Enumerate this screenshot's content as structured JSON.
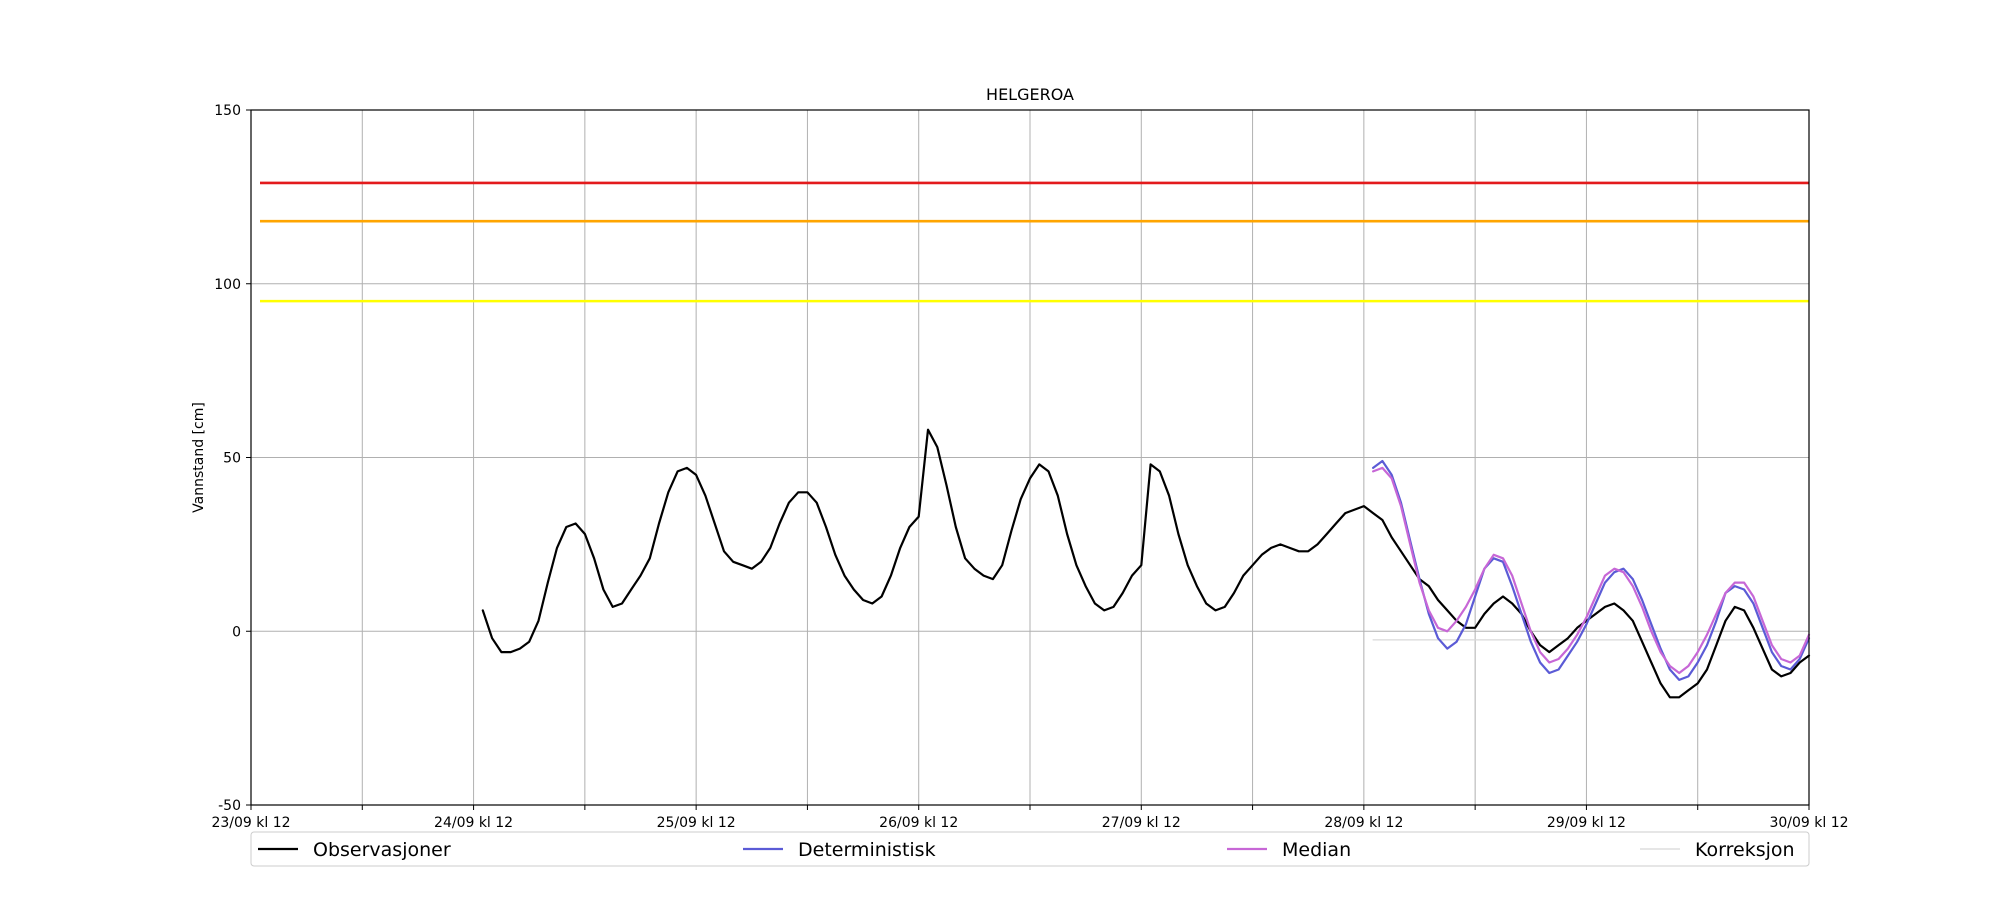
{
  "chart_data": {
    "type": "line",
    "title": "HELGEROA",
    "xlabel": "",
    "ylabel": "Vannstand [cm]",
    "xlim": [
      "23/09 12:00",
      "30/09 12:00"
    ],
    "ylim": [
      -50,
      150
    ],
    "y_ticks": [
      -50,
      0,
      50,
      100,
      150
    ],
    "x_tick_labels": [
      "23/09 kl 12",
      "24/09 kl 12",
      "25/09 kl 12",
      "26/09 kl 12",
      "27/09 kl 12",
      "28/09 kl 12",
      "29/09 kl 12",
      "30/09 kl 12"
    ],
    "grid": true,
    "legend_position": "bottom",
    "thresholds": [
      {
        "value": 129,
        "color": "#e31a1c"
      },
      {
        "value": 118,
        "color": "#ffa500"
      },
      {
        "value": 95,
        "color": "#ffff00"
      }
    ],
    "series": [
      {
        "name": "Observasjoner",
        "color": "#000000",
        "x": [
          "24/09 13:00",
          "24/09 14:00",
          "24/09 15:00",
          "24/09 16:00",
          "24/09 17:00",
          "24/09 18:00",
          "24/09 19:00",
          "24/09 20:00",
          "24/09 21:00",
          "24/09 22:00",
          "24/09 23:00",
          "25/09 00:00",
          "25/09 01:00",
          "25/09 02:00",
          "25/09 03:00",
          "25/09 04:00",
          "25/09 05:00",
          "25/09 06:00",
          "25/09 07:00",
          "25/09 08:00",
          "25/09 09:00",
          "25/09 10:00",
          "25/09 11:00",
          "25/09 12:00",
          "25/09 13:00",
          "25/09 14:00",
          "25/09 15:00",
          "25/09 16:00",
          "25/09 17:00",
          "25/09 18:00",
          "25/09 19:00",
          "25/09 20:00",
          "25/09 21:00",
          "25/09 22:00",
          "25/09 23:00",
          "26/09 00:00",
          "26/09 01:00",
          "26/09 02:00",
          "26/09 03:00",
          "26/09 04:00",
          "26/09 05:00",
          "26/09 06:00",
          "26/09 07:00",
          "26/09 08:00",
          "26/09 09:00",
          "26/09 10:00",
          "26/09 11:00",
          "26/09 12:00",
          "26/09 13:00",
          "26/09 14:00",
          "26/09 15:00",
          "26/09 16:00",
          "26/09 17:00",
          "26/09 18:00",
          "26/09 19:00",
          "26/09 20:00",
          "26/09 21:00",
          "26/09 22:00",
          "26/09 23:00",
          "27/09 00:00",
          "27/09 01:00",
          "27/09 02:00",
          "27/09 03:00",
          "27/09 04:00",
          "27/09 05:00",
          "27/09 06:00",
          "27/09 07:00",
          "27/09 08:00",
          "27/09 09:00",
          "27/09 10:00",
          "27/09 11:00",
          "27/09 12:00",
          "27/09 13:00",
          "27/09 14:00",
          "27/09 15:00",
          "27/09 16:00",
          "27/09 17:00",
          "27/09 18:00",
          "27/09 19:00",
          "27/09 20:00",
          "27/09 21:00",
          "27/09 22:00",
          "27/09 23:00",
          "28/09 00:00",
          "28/09 01:00",
          "28/09 02:00",
          "28/09 03:00",
          "28/09 04:00",
          "28/09 05:00",
          "28/09 06:00",
          "28/09 07:00",
          "28/09 08:00",
          "28/09 09:00",
          "28/09 10:00",
          "28/09 11:00",
          "28/09 12:00",
          "28/09 13:00",
          "28/09 14:00",
          "28/09 15:00",
          "28/09 16:00",
          "28/09 17:00",
          "28/09 18:00",
          "28/09 19:00",
          "28/09 20:00",
          "28/09 21:00",
          "28/09 22:00",
          "28/09 23:00",
          "29/09 00:00",
          "29/09 01:00",
          "29/09 02:00",
          "29/09 03:00",
          "29/09 04:00",
          "29/09 05:00",
          "29/09 06:00",
          "29/09 07:00",
          "29/09 08:00",
          "29/09 09:00",
          "29/09 10:00",
          "29/09 11:00",
          "29/09 12:00",
          "29/09 13:00",
          "29/09 14:00",
          "29/09 15:00",
          "29/09 16:00",
          "29/09 17:00",
          "29/09 18:00",
          "29/09 19:00",
          "29/09 20:00",
          "29/09 21:00",
          "29/09 22:00",
          "29/09 23:00",
          "30/09 00:00",
          "30/09 01:00",
          "30/09 02:00",
          "30/09 03:00",
          "30/09 04:00",
          "30/09 05:00",
          "30/09 06:00",
          "30/09 07:00",
          "30/09 08:00",
          "30/09 09:00",
          "30/09 10:00",
          "30/09 11:00",
          "30/09 12:00"
        ],
        "values": [
          6,
          -2,
          -6,
          -6,
          -5,
          -3,
          3,
          14,
          24,
          30,
          31,
          28,
          21,
          12,
          7,
          8,
          12,
          16,
          21,
          31,
          40,
          46,
          47,
          45,
          39,
          31,
          23,
          20,
          19,
          18,
          20,
          24,
          31,
          37,
          40,
          40,
          37,
          30,
          22,
          16,
          12,
          9,
          8,
          10,
          16,
          24,
          30,
          33,
          58,
          53,
          42,
          30,
          21,
          18,
          16,
          15,
          19,
          29,
          38,
          44,
          48,
          46,
          39,
          28,
          19,
          13,
          8,
          6,
          7,
          11,
          16,
          19,
          48,
          46,
          39,
          28,
          19,
          13,
          8,
          6,
          7,
          11,
          16,
          19,
          22,
          24,
          25,
          24,
          23,
          23,
          25,
          28,
          31,
          34,
          35,
          36,
          34,
          32,
          27,
          23,
          19,
          15,
          13,
          9,
          6,
          3,
          1,
          1,
          5,
          8,
          10,
          8,
          5,
          0,
          -4,
          -6,
          -4,
          -2,
          1,
          3,
          5,
          7,
          8,
          6,
          3,
          -3,
          -9,
          -15,
          -19,
          -19,
          -17,
          -15,
          -11,
          -4,
          3,
          7,
          6,
          1,
          -5,
          -11,
          -13,
          -12,
          -9,
          -7
        ]
      },
      {
        "name": "Deterministisk",
        "color": "#5b5bd6",
        "x": [
          "28/09 13:00",
          "28/09 14:00",
          "28/09 15:00",
          "28/09 16:00",
          "28/09 17:00",
          "28/09 18:00",
          "28/09 19:00",
          "28/09 20:00",
          "28/09 21:00",
          "28/09 22:00",
          "28/09 23:00",
          "29/09 00:00",
          "29/09 01:00",
          "29/09 02:00",
          "29/09 03:00",
          "29/09 04:00",
          "29/09 05:00",
          "29/09 06:00",
          "29/09 07:00",
          "29/09 08:00",
          "29/09 09:00",
          "29/09 10:00",
          "29/09 11:00",
          "29/09 12:00",
          "29/09 13:00",
          "29/09 14:00",
          "29/09 15:00",
          "29/09 16:00",
          "29/09 17:00",
          "29/09 18:00",
          "29/09 19:00",
          "29/09 20:00",
          "29/09 21:00",
          "29/09 22:00",
          "29/09 23:00",
          "30/09 00:00",
          "30/09 01:00",
          "30/09 02:00",
          "30/09 03:00",
          "30/09 04:00",
          "30/09 05:00",
          "30/09 06:00",
          "30/09 07:00",
          "30/09 08:00",
          "30/09 09:00",
          "30/09 10:00",
          "30/09 11:00",
          "30/09 12:00"
        ],
        "values": [
          47,
          49,
          45,
          37,
          26,
          15,
          5,
          -2,
          -5,
          -3,
          2,
          10,
          18,
          21,
          20,
          13,
          5,
          -3,
          -9,
          -12,
          -11,
          -7,
          -3,
          2,
          8,
          14,
          17,
          18,
          15,
          9,
          2,
          -5,
          -11,
          -14,
          -13,
          -9,
          -4,
          3,
          11,
          13,
          12,
          8,
          1,
          -6,
          -10,
          -11,
          -8,
          -2
        ]
      },
      {
        "name": "Median",
        "color": "#c767d6",
        "x": [
          "28/09 13:00",
          "28/09 14:00",
          "28/09 15:00",
          "28/09 16:00",
          "28/09 17:00",
          "28/09 18:00",
          "28/09 19:00",
          "28/09 20:00",
          "28/09 21:00",
          "28/09 22:00",
          "28/09 23:00",
          "29/09 00:00",
          "29/09 01:00",
          "29/09 02:00",
          "29/09 03:00",
          "29/09 04:00",
          "29/09 05:00",
          "29/09 06:00",
          "29/09 07:00",
          "29/09 08:00",
          "29/09 09:00",
          "29/09 10:00",
          "29/09 11:00",
          "29/09 12:00",
          "29/09 13:00",
          "29/09 14:00",
          "29/09 15:00",
          "29/09 16:00",
          "29/09 17:00",
          "29/09 18:00",
          "29/09 19:00",
          "29/09 20:00",
          "29/09 21:00",
          "29/09 22:00",
          "29/09 23:00",
          "30/09 00:00",
          "30/09 01:00",
          "30/09 02:00",
          "30/09 03:00",
          "30/09 04:00",
          "30/09 05:00",
          "30/09 06:00",
          "30/09 07:00",
          "30/09 08:00",
          "30/09 09:00",
          "30/09 10:00",
          "30/09 11:00",
          "30/09 12:00"
        ],
        "values": [
          46,
          47,
          44,
          36,
          25,
          14,
          6,
          1,
          0,
          3,
          7,
          12,
          18,
          22,
          21,
          16,
          8,
          0,
          -6,
          -9,
          -8,
          -5,
          -1,
          4,
          10,
          16,
          18,
          17,
          13,
          7,
          0,
          -6,
          -10,
          -12,
          -10,
          -6,
          -1,
          5,
          11,
          14,
          14,
          10,
          3,
          -4,
          -8,
          -9,
          -7,
          -1
        ]
      },
      {
        "name": "Korreksjon",
        "color": "#d8d8d8",
        "x": [
          "28/09 13:00",
          "30/09 12:00"
        ],
        "values": [
          -2.5,
          -2.5
        ]
      }
    ]
  }
}
